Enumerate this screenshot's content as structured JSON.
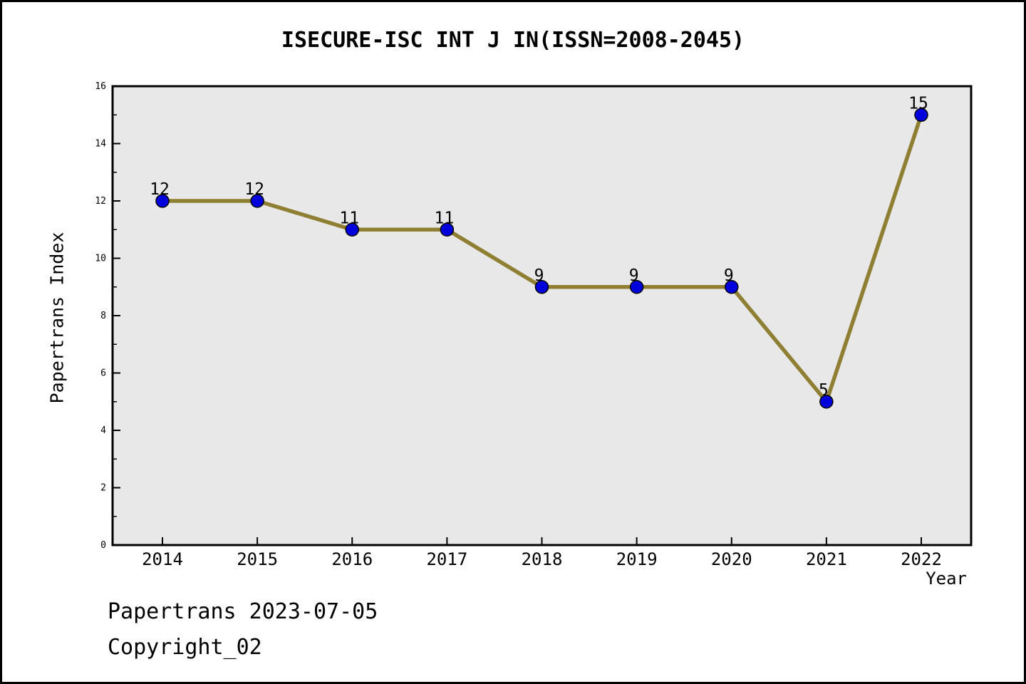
{
  "header": {
    "title": "ISECURE-ISC INT J IN(ISSN=2008-2045)"
  },
  "footer": {
    "line1": "Papertrans 2023-07-05",
    "line2": "Copyright_02"
  },
  "chart_data": {
    "type": "line",
    "title": "ISECURE-ISC INT J IN(ISSN=2008-2045)",
    "xlabel": "Year",
    "ylabel": "Papertrans Index",
    "categories": [
      "2014",
      "2015",
      "2016",
      "2017",
      "2018",
      "2019",
      "2020",
      "2021",
      "2022"
    ],
    "values": [
      12,
      12,
      11,
      11,
      9,
      9,
      9,
      5,
      15
    ],
    "ylim": [
      0,
      16
    ],
    "ytick_major_step": 2,
    "ytick_minor_step": 1,
    "grid": "off",
    "legend": "none",
    "point_labels_shown": true,
    "colors": {
      "line": "#8e7f33",
      "marker": "#0000dd",
      "marker_edge": "#000000",
      "plot_bg": "#e8e8e8",
      "frame": "#000000",
      "text": "#000000"
    }
  }
}
